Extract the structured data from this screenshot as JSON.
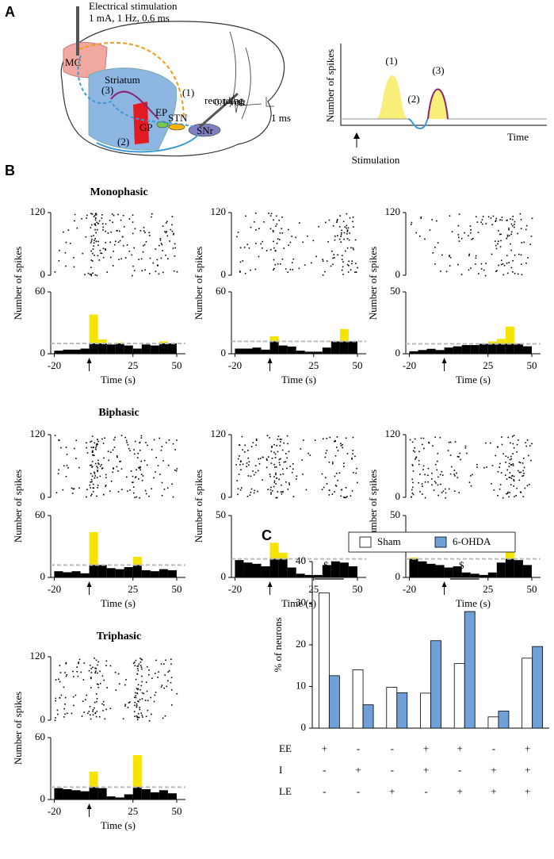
{
  "panel_labels": [
    "A",
    "B",
    "C"
  ],
  "panel_a": {
    "stim_title": "Electrical stimulation",
    "stim_params": "1 mA, 1 Hz, 0.6 ms",
    "regions": {
      "mc": "MC",
      "striatum": "Striatum",
      "ep": "EP",
      "stn": "STN",
      "gp": "GP",
      "snr": "SNr"
    },
    "pathways": {
      "p1": "(1)",
      "p2": "(2)",
      "p3": "(3)"
    },
    "recording": "recording",
    "scale_volt": "0.1 volt",
    "scale_time": "1 ms",
    "schematic": {
      "peak1": "(1)",
      "dip2": "(2)",
      "peak3": "(3)",
      "ylabel": "Number of spikes",
      "xlabel": "Time",
      "stimulus": "Stimulation"
    }
  },
  "chart_data": [
    {
      "type": "histogram",
      "title": "Monophasic",
      "xlabel": "Time (s)",
      "ylabel": "Number of spikes",
      "bins": [
        -20,
        -15,
        -10,
        -5,
        0,
        5,
        10,
        15,
        20,
        25,
        30,
        35,
        40,
        45,
        50
      ],
      "values": [
        3,
        4,
        4,
        5,
        38,
        14,
        9,
        11,
        8,
        5,
        9,
        8,
        12,
        10
      ],
      "threshold": 10,
      "stimulus_time": 0,
      "color": "#000000",
      "excess_color": "#f5e400",
      "xlim": [
        -22,
        55
      ],
      "xticks": [
        -20,
        25,
        50
      ],
      "ylim": [
        0,
        60
      ],
      "yticks": [
        0,
        60
      ],
      "raster_ylim": [
        0,
        120
      ],
      "raster_yticks": [
        0,
        120
      ]
    },
    {
      "type": "histogram",
      "xlabel": "Time (s)",
      "ylabel": "Number of spikes",
      "bins": [
        -20,
        -15,
        -10,
        -5,
        0,
        5,
        10,
        15,
        20,
        25,
        30,
        35,
        40,
        45,
        50
      ],
      "values": [
        5,
        5,
        6,
        4,
        17,
        8,
        7,
        3,
        2,
        2,
        6,
        12,
        24,
        12
      ],
      "threshold": 12,
      "stimulus_time": 0,
      "color": "#000000",
      "excess_color": "#f5e400",
      "xlim": [
        -22,
        55
      ],
      "xticks": [
        -20,
        25,
        50
      ],
      "ylim": [
        0,
        60
      ],
      "yticks": [
        0,
        60
      ],
      "raster_ylim": [
        0,
        120
      ],
      "raster_yticks": [
        0,
        120
      ]
    },
    {
      "type": "histogram",
      "xlabel": "Time (s)",
      "ylabel": "Number of spikes",
      "bins": [
        -20,
        -15,
        -10,
        -5,
        0,
        5,
        10,
        15,
        20,
        25,
        30,
        35,
        40,
        45,
        50
      ],
      "values": [
        2,
        3,
        4,
        3,
        5,
        6,
        7,
        7,
        8,
        10,
        12,
        22,
        8,
        6
      ],
      "threshold": 8,
      "stimulus_time": 0,
      "color": "#000000",
      "excess_color": "#f5e400",
      "xlim": [
        -22,
        55
      ],
      "xticks": [
        -20,
        25,
        50
      ],
      "ylim": [
        0,
        50
      ],
      "yticks": [
        0,
        50
      ],
      "raster_ylim": [
        0,
        120
      ],
      "raster_yticks": [
        0,
        120
      ]
    },
    {
      "type": "histogram",
      "title": "Biphasic",
      "xlabel": "Time (s)",
      "ylabel": "Number of spikes",
      "bins": [
        -20,
        -15,
        -10,
        -5,
        0,
        5,
        10,
        15,
        20,
        25,
        30,
        35,
        40,
        45,
        50
      ],
      "values": [
        6,
        5,
        6,
        4,
        44,
        12,
        9,
        8,
        10,
        20,
        7,
        6,
        8,
        7
      ],
      "threshold": 12,
      "stimulus_time": 0,
      "color": "#000000",
      "excess_color": "#f5e400",
      "xlim": [
        -22,
        55
      ],
      "xticks": [
        -20,
        25,
        50
      ],
      "ylim": [
        0,
        60
      ],
      "yticks": [
        0,
        60
      ],
      "raster_ylim": [
        0,
        120
      ],
      "raster_yticks": [
        0,
        120
      ]
    },
    {
      "type": "histogram",
      "xlabel": "Time (s)",
      "ylabel": "Number of spikes",
      "bins": [
        -20,
        -15,
        -10,
        -5,
        0,
        5,
        10,
        15,
        20,
        25,
        30,
        35,
        40,
        45,
        50
      ],
      "values": [
        14,
        12,
        11,
        9,
        28,
        20,
        8,
        3,
        2,
        2,
        10,
        13,
        12,
        9
      ],
      "threshold": 15,
      "stimulus_time": 0,
      "color": "#000000",
      "excess_color": "#f5e400",
      "xlim": [
        -22,
        55
      ],
      "xticks": [
        -20,
        25,
        50
      ],
      "ylim": [
        0,
        50
      ],
      "yticks": [
        0,
        50
      ],
      "raster_ylim": [
        0,
        120
      ],
      "raster_yticks": [
        0,
        120
      ]
    },
    {
      "type": "histogram",
      "xlabel": "Time (s)",
      "ylabel": "Number of spikes",
      "bins": [
        -20,
        -15,
        -10,
        -5,
        0,
        5,
        10,
        15,
        20,
        25,
        30,
        35,
        40,
        45,
        50
      ],
      "values": [
        16,
        13,
        11,
        10,
        8,
        9,
        4,
        3,
        2,
        4,
        12,
        28,
        14,
        10
      ],
      "threshold": 15,
      "stimulus_time": 0,
      "color": "#000000",
      "excess_color": "#f5e400",
      "xlim": [
        -22,
        55
      ],
      "xticks": [
        -20,
        25,
        50
      ],
      "ylim": [
        0,
        50
      ],
      "yticks": [
        0,
        50
      ],
      "raster_ylim": [
        0,
        120
      ],
      "raster_yticks": [
        0,
        120
      ]
    },
    {
      "type": "histogram",
      "title": "Triphasic",
      "xlabel": "Time (s)",
      "ylabel": "Number of spikes",
      "bins": [
        -20,
        -15,
        -10,
        -5,
        0,
        5,
        10,
        15,
        20,
        25,
        30,
        35,
        40,
        45,
        50
      ],
      "values": [
        11,
        10,
        9,
        8,
        27,
        11,
        3,
        2,
        5,
        43,
        10,
        7,
        9,
        6
      ],
      "threshold": 12,
      "stimulus_time": 0,
      "color": "#000000",
      "excess_color": "#f5e400",
      "xlim": [
        -22,
        55
      ],
      "xticks": [
        -20,
        25,
        50
      ],
      "ylim": [
        0,
        60
      ],
      "yticks": [
        0,
        60
      ],
      "raster_ylim": [
        0,
        120
      ],
      "raster_yticks": [
        0,
        120
      ]
    },
    {
      "type": "bar",
      "ylabel": "% of neurons",
      "categories": [
        null,
        null,
        null,
        null,
        null,
        null,
        null
      ],
      "series": [
        {
          "name": "Sham",
          "color": "#ffffff",
          "values": [
            32.5,
            14,
            9.8,
            8.4,
            15.5,
            2.7,
            16.8
          ]
        },
        {
          "name": "6-OHDA",
          "color": "#6fa0d8",
          "values": [
            12.6,
            5.6,
            8.5,
            21,
            28,
            4.1,
            19.6
          ]
        }
      ],
      "significance": [
        "$",
        null,
        null,
        null,
        "$",
        null,
        null
      ],
      "conditions": [
        {
          "name": "EE",
          "signs": [
            "+",
            "-",
            "-",
            "+",
            "+",
            "-",
            "+"
          ]
        },
        {
          "name": "I",
          "signs": [
            "-",
            "+",
            "-",
            "+",
            "-",
            "+",
            "+"
          ]
        },
        {
          "name": "LE",
          "signs": [
            "-",
            "-",
            "+",
            "-",
            "+",
            "+",
            "+"
          ]
        }
      ],
      "ylim": [
        0,
        40
      ],
      "yticks": [
        0,
        10,
        20,
        30,
        40
      ],
      "legend": "top"
    }
  ]
}
